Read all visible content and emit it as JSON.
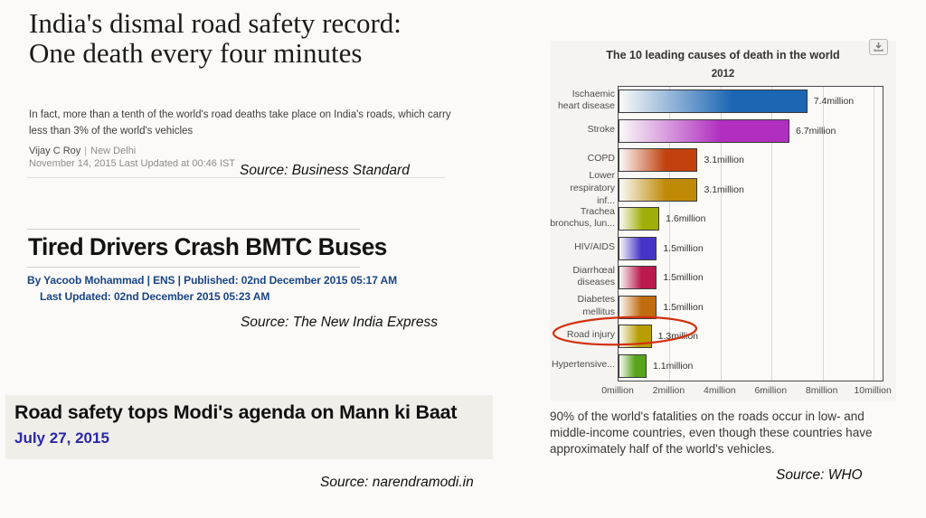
{
  "articles": {
    "business_standard": {
      "headline": "India's dismal road safety record: One death every four minutes",
      "deck": "In fact, more than a tenth of the world's road deaths take place on India's roads, which carry less than 3% of the world's vehicles",
      "byline_author": "Vijay C Roy",
      "byline_separator": "|",
      "byline_location": "New Delhi",
      "dateline": "November 14, 2015 Last Updated at 00:46 IST",
      "source": "Source: Business Standard"
    },
    "new_india_express": {
      "headline": "Tired Drivers Crash BMTC Buses",
      "byline_line1": "By Yacoob Mohammad | ENS  |  Published: 02nd December 2015 05:17 AM",
      "byline_line2": "Last Updated: 02nd December 2015 05:23 AM",
      "source": "Source: The New India Express"
    },
    "narendramodi": {
      "headline": "Road safety tops Modi's agenda on Mann ki Baat",
      "date": "July 27, 2015",
      "source": "Source: narendramodi.in"
    }
  },
  "chart_data": {
    "type": "bar",
    "orientation": "horizontal",
    "title": "The 10 leading causes of death in the world",
    "subtitle": "2012",
    "categories": [
      "Ischaemic heart disease",
      "Stroke",
      "COPD",
      "Lower respiratory inf...",
      "Trachea bronchus, lun...",
      "HIV/AIDS",
      "Diarrhœal diseases",
      "Diabetes mellitus",
      "Road injury",
      "Hypertensive..."
    ],
    "category_label_lines": [
      [
        "Ischaemic",
        "heart disease"
      ],
      [
        "Stroke"
      ],
      [
        "COPD"
      ],
      [
        "Lower",
        "respiratory inf..."
      ],
      [
        "Trachea",
        "bronchus, lun..."
      ],
      [
        "HIV/AIDS"
      ],
      [
        "Diarrhœal",
        "diseases"
      ],
      [
        "Diabetes",
        "mellitus"
      ],
      [
        "Road injury"
      ],
      [
        "Hypertensive..."
      ]
    ],
    "values_millions": [
      7.4,
      6.7,
      3.1,
      3.1,
      1.6,
      1.5,
      1.5,
      1.5,
      1.3,
      1.1
    ],
    "value_labels": [
      "7.4million",
      "6.7million",
      "3.1million",
      "3.1million",
      "1.6million",
      "1.5million",
      "1.5million",
      "1.5million",
      "1.3million",
      "1.1million"
    ],
    "bar_colors": [
      "#1c66b4",
      "#b02ec0",
      "#c2410e",
      "#bf8a06",
      "#9fae08",
      "#4634c8",
      "#ba1a4e",
      "#c06b10",
      "#b89e04",
      "#58a41c"
    ],
    "bar_gradient_start": "#fafaf8",
    "x_ticks": [
      "0million",
      "2million",
      "4million",
      "6million",
      "8million",
      "10million"
    ],
    "x_tick_values": [
      0,
      2,
      4,
      6,
      8,
      10
    ],
    "xlim": [
      0,
      10.35
    ],
    "grid": true,
    "legend": "none",
    "annotation": {
      "shape": "hand-drawn-ellipse",
      "target_category": "Road injury",
      "color": "#d2300e"
    },
    "export_icon": "download-icon"
  },
  "who_caption": {
    "text": "90% of the world's fatalities on the roads occur in low- and middle-income countries, even though these countries have approximately half of the world's vehicles.",
    "source": "Source: WHO"
  }
}
